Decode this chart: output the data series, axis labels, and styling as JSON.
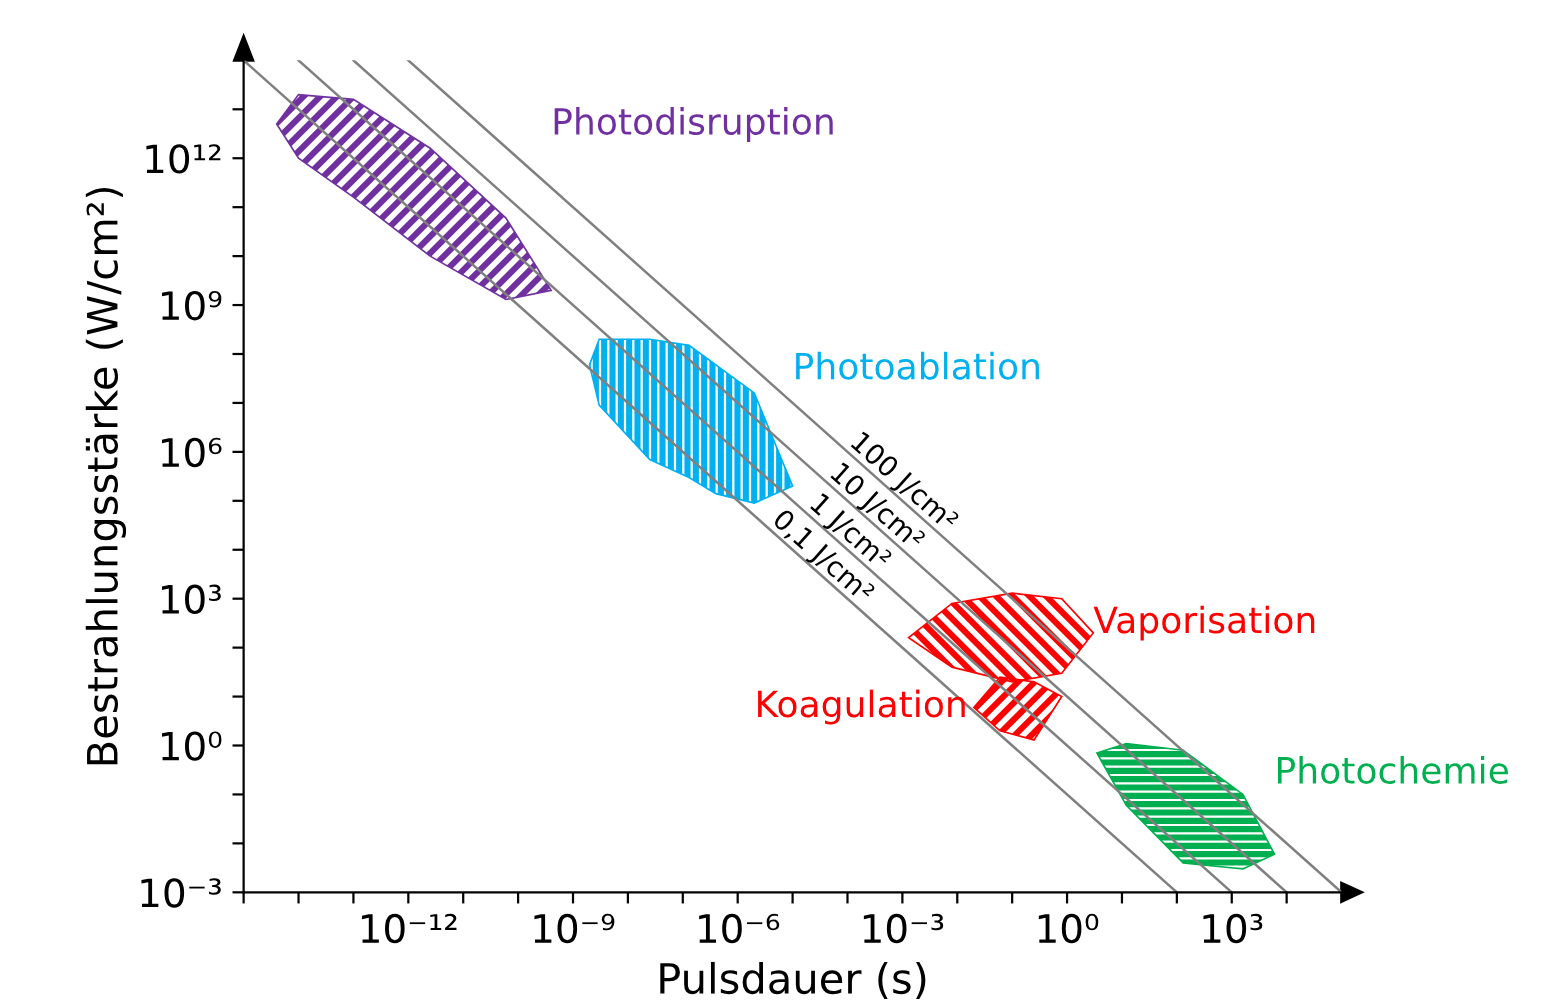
{
  "chart_data": {
    "type": "line",
    "xlabel": "Pulsdauer (s)",
    "ylabel": "Bestrahlungsstärke (W/cm²)",
    "log": "xy",
    "grid": false,
    "legend": false,
    "xlim": [
      1e-15,
      100000.0
    ],
    "ylim": [
      0.001,
      100000000000000.0
    ],
    "xticks": [
      {
        "value": 1e-15,
        "label": null
      },
      {
        "value": 1e-14,
        "label": null
      },
      {
        "value": 1e-13,
        "label": null
      },
      {
        "value": 1e-12,
        "label": "10⁻¹²"
      },
      {
        "value": 1e-11,
        "label": null
      },
      {
        "value": 1e-10,
        "label": null
      },
      {
        "value": 1e-09,
        "label": "10⁻⁹"
      },
      {
        "value": 1e-08,
        "label": null
      },
      {
        "value": 1e-07,
        "label": null
      },
      {
        "value": 1e-06,
        "label": "10⁻⁶"
      },
      {
        "value": 1e-05,
        "label": null
      },
      {
        "value": 0.0001,
        "label": null
      },
      {
        "value": 0.001,
        "label": "10⁻³"
      },
      {
        "value": 0.01,
        "label": null
      },
      {
        "value": 0.1,
        "label": null
      },
      {
        "value": 1,
        "label": "10⁰"
      },
      {
        "value": 10,
        "label": null
      },
      {
        "value": 100,
        "label": null
      },
      {
        "value": 1000,
        "label": "10³"
      },
      {
        "value": 10000.0,
        "label": null
      }
    ],
    "yticks": [
      {
        "value": 0.001,
        "label": "10⁻³"
      },
      {
        "value": 0.01,
        "label": null
      },
      {
        "value": 0.1,
        "label": null
      },
      {
        "value": 1,
        "label": "10⁰"
      },
      {
        "value": 10,
        "label": null
      },
      {
        "value": 100,
        "label": null
      },
      {
        "value": 1000,
        "label": "10³"
      },
      {
        "value": 10000.0,
        "label": null
      },
      {
        "value": 100000.0,
        "label": null
      },
      {
        "value": 1000000.0,
        "label": "10⁶"
      },
      {
        "value": 10000000.0,
        "label": null
      },
      {
        "value": 100000000.0,
        "label": null
      },
      {
        "value": 1000000000.0,
        "label": "10⁹"
      },
      {
        "value": 10000000000.0,
        "label": null
      },
      {
        "value": 100000000000.0,
        "label": null
      },
      {
        "value": 1000000000000.0,
        "label": "10¹²"
      },
      {
        "value": 10000000000000.0,
        "label": null
      }
    ],
    "series": [
      {
        "type": "area",
        "name": "Photodisruption",
        "color": "#7030a0",
        "x": [
          4e-15,
          1e-14,
          1e-13,
          2.5e-12,
          6e-11,
          4e-10,
          6e-11,
          2.5e-12,
          1e-13,
          1e-14
        ],
        "values": [
          5000000000000.0,
          20000000000000.0,
          16000000000000.0,
          1600000000000.0,
          60000000000.0,
          2000000000.0,
          1300000000.0,
          10000000000.0,
          160000000000.0,
          1000000000000.0
        ]
      },
      {
        "type": "area",
        "name": "Photoablation",
        "color": "#00b0f0",
        "x": [
          2e-09,
          3e-09,
          2.5e-08,
          1.3e-07,
          4e-07,
          2e-06,
          1e-05,
          2e-06,
          4e-07,
          1.3e-07,
          2.5e-08,
          3e-09
        ],
        "values": [
          60000000.0,
          200000000.0,
          200000000.0,
          150000000.0,
          60000000.0,
          16000000.0,
          200000.0,
          90000.0,
          140000.0,
          300000.0,
          700000.0,
          9000000.0
        ]
      },
      {
        "type": "area",
        "name": "Vaporisation",
        "color": "#ff0000",
        "x": [
          0.0013,
          0.008,
          0.1,
          0.8,
          3,
          0.8,
          0.1,
          0.008
        ],
        "values": [
          160,
          800,
          1300,
          1000,
          200,
          30,
          20,
          40
        ]
      },
      {
        "type": "area",
        "name": "Koagulation",
        "color": "#ff0000",
        "x": [
          0.02,
          0.06,
          0.25,
          0.8,
          0.25,
          0.06
        ],
        "values": [
          6,
          25,
          20,
          10,
          1.3,
          2
        ]
      },
      {
        "type": "area",
        "name": "Photochemie",
        "color": "#00b050",
        "x": [
          3.5,
          12,
          130,
          1600,
          6000,
          1600,
          130,
          12
        ],
        "values": [
          0.7,
          1.1,
          0.8,
          0.1,
          0.006,
          0.003,
          0.004,
          0.06
        ]
      },
      {
        "name": "100 J/cm²",
        "color": "#808080",
        "x": [
          1e-12,
          100000.0
        ],
        "values": [
          100000000000000.0,
          0.001
        ]
      },
      {
        "name": "10 J/cm²",
        "color": "#808080",
        "x": [
          1e-13,
          10000.0
        ],
        "values": [
          100000000000000.0,
          0.001
        ]
      },
      {
        "name": "1 J/cm²",
        "color": "#808080",
        "x": [
          1e-14,
          1000.0
        ],
        "values": [
          100000000000000.0,
          0.001
        ]
      },
      {
        "name": "0,1 J/cm²",
        "color": "#808080",
        "x": [
          1e-15,
          100.0
        ],
        "values": [
          100000000000000.0,
          0.001
        ]
      }
    ]
  }
}
